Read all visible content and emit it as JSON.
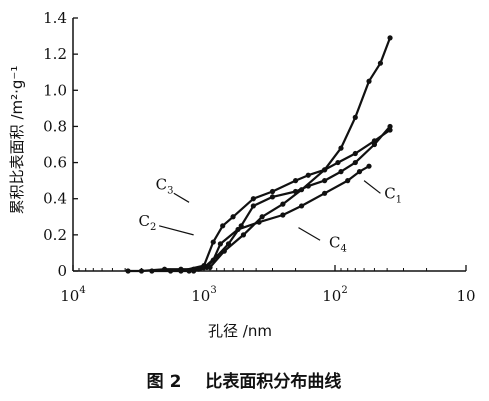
{
  "caption": {
    "figure_number": "图 2",
    "title": "比表面积分布曲线"
  },
  "chart_data": {
    "type": "line",
    "xlabel": "孔径 /nm",
    "ylabel": "累积比表面积 /m²·g⁻¹",
    "x_scale": "log-reversed",
    "xlim": [
      10000,
      10
    ],
    "ylim": [
      0,
      1.4
    ],
    "x_ticks": [
      {
        "value": 10000,
        "label_base": "10",
        "label_exp": "4"
      },
      {
        "value": 1000,
        "label_base": "10",
        "label_exp": "3"
      },
      {
        "value": 100,
        "label_base": "10",
        "label_exp": "2"
      },
      {
        "value": 10,
        "label_base": "10",
        "label_exp": ""
      }
    ],
    "y_ticks": [
      {
        "value": 0,
        "label": "0"
      },
      {
        "value": 0.2,
        "label": "0.2"
      },
      {
        "value": 0.4,
        "label": "0.4"
      },
      {
        "value": 0.6,
        "label": "0.6"
      },
      {
        "value": 0.8,
        "label": "0.8"
      },
      {
        "value": 1.0,
        "label": "1.0"
      },
      {
        "value": 1.2,
        "label": "1.2"
      },
      {
        "value": 1.4,
        "label": "1.4"
      }
    ],
    "grid": false,
    "legend": "inline labels",
    "series": [
      {
        "name_base": "C",
        "name_sub": "1",
        "x": [
          2500,
          1800,
          1300,
          1100,
          950,
          850,
          750,
          550,
          380,
          250,
          180,
          120,
          80,
          65,
          55
        ],
        "y": [
          0,
          0,
          0,
          0.01,
          0.02,
          0.06,
          0.15,
          0.23,
          0.27,
          0.31,
          0.36,
          0.43,
          0.5,
          0.55,
          0.58
        ]
      },
      {
        "name_base": "C",
        "name_sub": "2",
        "x": [
          1500,
          1000,
          850,
          720,
          600,
          420,
          300,
          200,
          160,
          120,
          95,
          70,
          50,
          38
        ],
        "y": [
          0,
          0.03,
          0.16,
          0.25,
          0.3,
          0.4,
          0.44,
          0.5,
          0.53,
          0.56,
          0.6,
          0.65,
          0.72,
          0.78
        ]
      },
      {
        "name_base": "C",
        "name_sub": "3",
        "x": [
          3800,
          3000,
          2000,
          1500,
          1200,
          1000,
          800,
          650,
          520,
          420,
          300,
          200,
          160,
          120,
          90,
          70,
          50,
          38
        ],
        "y": [
          0,
          0,
          0.01,
          0.01,
          0.01,
          0.02,
          0.08,
          0.15,
          0.25,
          0.36,
          0.41,
          0.44,
          0.47,
          0.5,
          0.55,
          0.6,
          0.7,
          0.8
        ]
      },
      {
        "name_base": "C",
        "name_sub": "4",
        "x": [
          1200,
          900,
          700,
          500,
          360,
          250,
          180,
          120,
          90,
          70,
          55,
          45,
          38
        ],
        "y": [
          0,
          0.02,
          0.11,
          0.2,
          0.3,
          0.37,
          0.45,
          0.56,
          0.68,
          0.85,
          1.05,
          1.15,
          1.29
        ]
      }
    ],
    "label_anchor": [
      {
        "x": 2000,
        "y": 0.45
      },
      {
        "x": 2700,
        "y": 0.25
      },
      {
        "x": 36,
        "y": 0.4
      },
      {
        "x": 95,
        "y": 0.13
      }
    ]
  }
}
